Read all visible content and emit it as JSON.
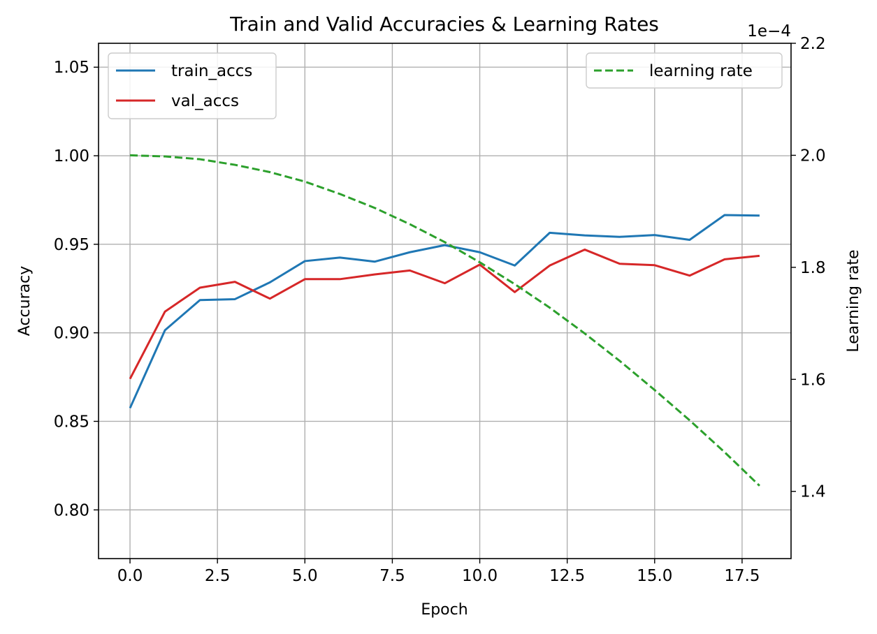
{
  "colors": {
    "train": "#1f77b4",
    "val": "#d62728",
    "lr": "#2ca02c",
    "grid": "#b0b0b0",
    "axis": "#000000",
    "legend_border": "#cccccc"
  },
  "chart_data": {
    "type": "line",
    "title": "Train and Valid Accuracies & Learning Rates",
    "xlabel": "Epoch",
    "ylabel": "Accuracy",
    "y2label": "Learning rate",
    "y2_offset_text": "1e−4",
    "xlim": [
      -0.9,
      18.9
    ],
    "ylim": [
      0.7725,
      1.0635
    ],
    "y2lim": [
      1.28,
      2.2
    ],
    "y2_scale": 0.0001,
    "grid": true,
    "x_ticks": [
      0,
      2.5,
      5,
      7.5,
      10,
      12.5,
      15,
      17.5
    ],
    "x_tick_labels": [
      "0.0",
      "2.5",
      "5.0",
      "7.5",
      "10.0",
      "12.5",
      "15.0",
      "17.5"
    ],
    "y_ticks": [
      0.8,
      0.85,
      0.9,
      0.95,
      1.0,
      1.05
    ],
    "y_tick_labels": [
      "0.80",
      "0.85",
      "0.90",
      "0.95",
      "1.00",
      "1.05"
    ],
    "y2_ticks": [
      1.4,
      1.6,
      1.8,
      2.0,
      2.2
    ],
    "y2_tick_labels": [
      "1.4",
      "1.6",
      "1.8",
      "2.0",
      "2.2"
    ],
    "x": [
      0,
      1,
      2,
      3,
      4,
      5,
      6,
      7,
      8,
      9,
      10,
      11,
      12,
      13,
      14,
      15,
      16,
      17,
      18
    ],
    "series": [
      {
        "name": "train_accs",
        "axis": "left",
        "style": "solid",
        "color_key": "train",
        "values": [
          0.8575,
          0.9015,
          0.9185,
          0.919,
          0.9285,
          0.9405,
          0.9425,
          0.9402,
          0.9455,
          0.9495,
          0.9455,
          0.938,
          0.9565,
          0.955,
          0.9542,
          0.9552,
          0.9525,
          0.9665,
          0.9662
        ]
      },
      {
        "name": "val_accs",
        "axis": "left",
        "style": "solid",
        "color_key": "val",
        "values": [
          0.874,
          0.912,
          0.9255,
          0.9288,
          0.9193,
          0.9303,
          0.9303,
          0.933,
          0.9352,
          0.928,
          0.9385,
          0.923,
          0.938,
          0.947,
          0.939,
          0.9382,
          0.9323,
          0.9415,
          0.9435
        ]
      },
      {
        "name": "learning rate",
        "axis": "right",
        "style": "dashed",
        "color_key": "lr",
        "values": [
          2.0,
          1.998,
          1.993,
          1.983,
          1.97,
          1.953,
          1.931,
          1.906,
          1.877,
          1.845,
          1.809,
          1.77,
          1.728,
          1.682,
          1.633,
          1.581,
          1.527,
          1.47,
          1.41
        ]
      }
    ],
    "legends": [
      {
        "placement": "top-left",
        "entries": [
          "train_accs",
          "val_accs"
        ]
      },
      {
        "placement": "top-right",
        "entries": [
          "learning rate"
        ]
      }
    ]
  }
}
